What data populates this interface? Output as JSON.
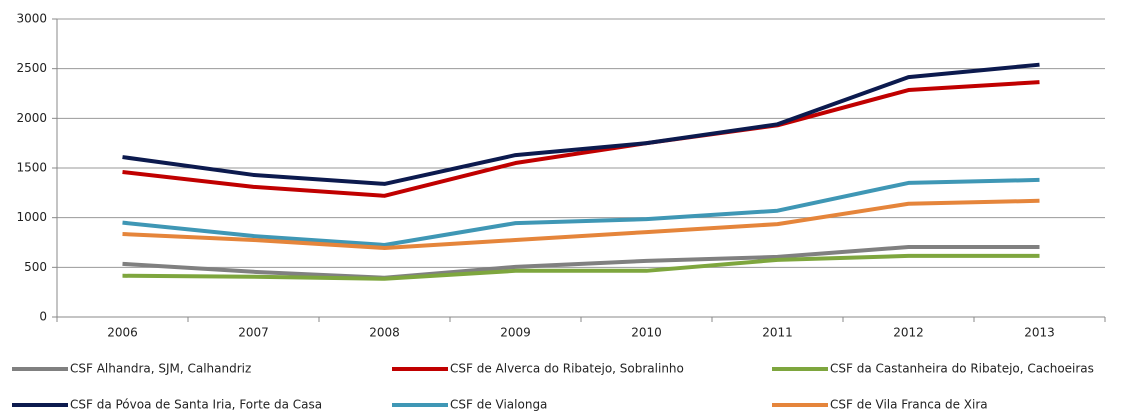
{
  "chart_data": {
    "type": "line",
    "categories": [
      "2006",
      "2007",
      "2008",
      "2009",
      "2010",
      "2011",
      "2012",
      "2013"
    ],
    "series": [
      {
        "name": "CSF Alhandra, SJM, Calhandriz",
        "color": "#808080",
        "values": [
          535,
          455,
          395,
          505,
          565,
          605,
          705,
          705
        ]
      },
      {
        "name": "CSF de Alverca do Ribatejo, Sobralinho",
        "color": "#c00000",
        "values": [
          1460,
          1310,
          1220,
          1550,
          1750,
          1930,
          2285,
          2365
        ]
      },
      {
        "name": "CSF da Castanheira do Ribatejo, Cachoeiras",
        "color": "#7ea63e",
        "values": [
          415,
          405,
          385,
          465,
          465,
          575,
          615,
          615
        ]
      },
      {
        "name": "CSF da Póvoa de Santa Iria, Forte da Casa",
        "color": "#0c1a4e",
        "values": [
          1610,
          1430,
          1340,
          1630,
          1750,
          1940,
          2415,
          2540
        ]
      },
      {
        "name": "CSF de Vialonga",
        "color": "#3f97b5",
        "values": [
          950,
          815,
          725,
          945,
          985,
          1070,
          1350,
          1380
        ]
      },
      {
        "name": "CSF de Vila Franca de Xira",
        "color": "#e5853b",
        "values": [
          835,
          775,
          695,
          775,
          855,
          935,
          1140,
          1170
        ]
      }
    ],
    "ylim": [
      0,
      3000
    ],
    "yticks": [
      0,
      500,
      1000,
      1500,
      2000,
      2500,
      3000
    ],
    "grid": true,
    "legend": "bottom"
  }
}
